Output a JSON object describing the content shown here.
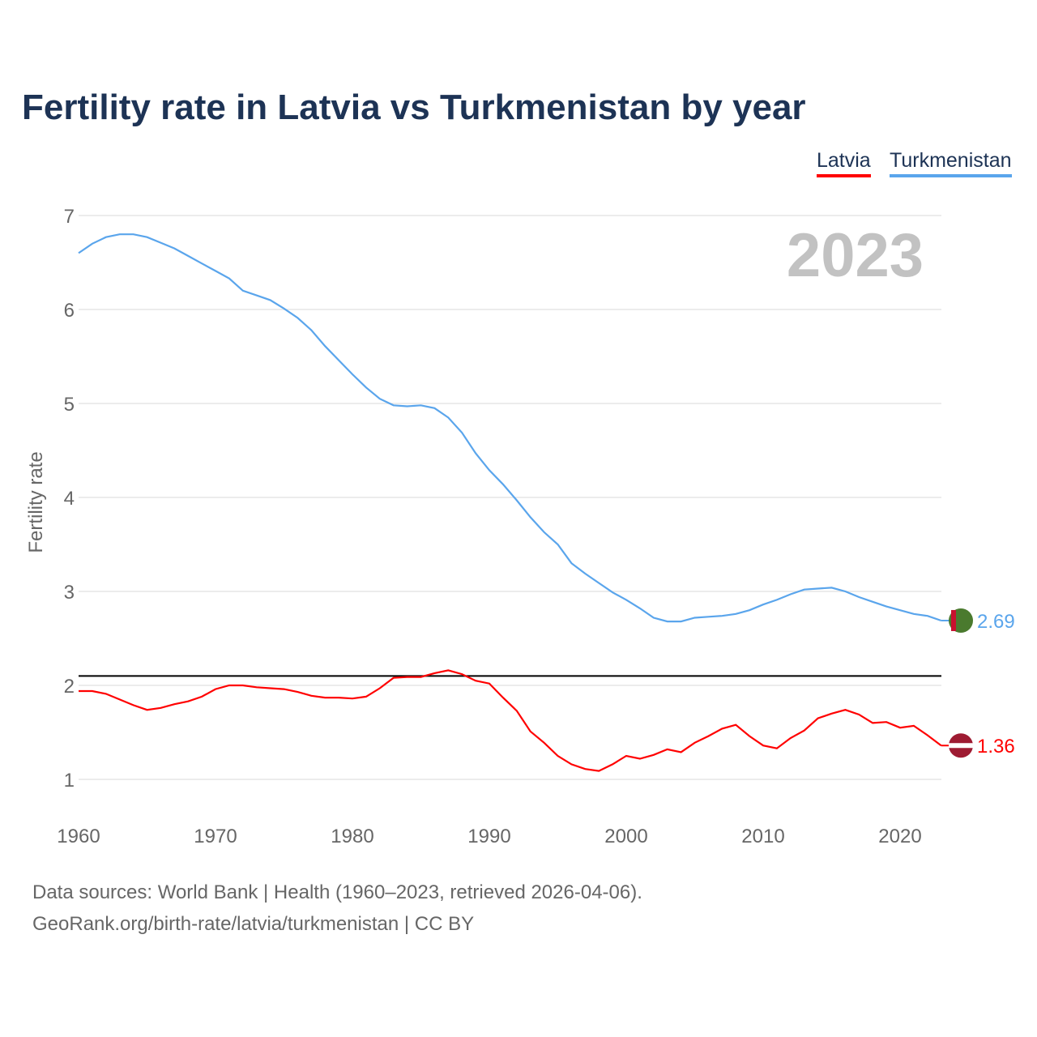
{
  "chart_data": {
    "type": "line",
    "title": "Fertility rate in Latvia vs Turkmenistan by year",
    "xlabel": "",
    "ylabel": "Fertility rate",
    "xlim": [
      1960,
      2023
    ],
    "ylim": [
      1,
      7
    ],
    "x_ticks": [
      "1960",
      "1970",
      "1980",
      "1990",
      "2000",
      "2010",
      "2020"
    ],
    "y_ticks": [
      "1",
      "2",
      "3",
      "4",
      "5",
      "6",
      "7"
    ],
    "grid": true,
    "legend_position": "top-right",
    "year_label": "2023",
    "reference_line": 2.1,
    "x": [
      1960,
      1961,
      1962,
      1963,
      1964,
      1965,
      1966,
      1967,
      1968,
      1969,
      1970,
      1971,
      1972,
      1973,
      1974,
      1975,
      1976,
      1977,
      1978,
      1979,
      1980,
      1981,
      1982,
      1983,
      1984,
      1985,
      1986,
      1987,
      1988,
      1989,
      1990,
      1991,
      1992,
      1993,
      1994,
      1995,
      1996,
      1997,
      1998,
      1999,
      2000,
      2001,
      2002,
      2003,
      2004,
      2005,
      2006,
      2007,
      2008,
      2009,
      2010,
      2011,
      2012,
      2013,
      2014,
      2015,
      2016,
      2017,
      2018,
      2019,
      2020,
      2021,
      2022,
      2023
    ],
    "series": [
      {
        "name": "Latvia",
        "color": "#ff0000",
        "end_label": "1.36",
        "values": [
          1.94,
          1.94,
          1.91,
          1.85,
          1.79,
          1.74,
          1.76,
          1.8,
          1.83,
          1.88,
          1.96,
          2.0,
          2.0,
          1.98,
          1.97,
          1.96,
          1.93,
          1.89,
          1.87,
          1.87,
          1.86,
          1.88,
          1.97,
          2.08,
          2.09,
          2.09,
          2.13,
          2.16,
          2.12,
          2.05,
          2.02,
          1.87,
          1.73,
          1.51,
          1.39,
          1.25,
          1.16,
          1.11,
          1.09,
          1.16,
          1.25,
          1.22,
          1.26,
          1.32,
          1.29,
          1.39,
          1.46,
          1.54,
          1.58,
          1.46,
          1.36,
          1.33,
          1.44,
          1.52,
          1.65,
          1.7,
          1.74,
          1.69,
          1.6,
          1.61,
          1.55,
          1.57,
          1.47,
          1.36
        ]
      },
      {
        "name": "Turkmenistan",
        "color": "#5aa5ec",
        "end_label": "2.69",
        "values": [
          6.6,
          6.7,
          6.77,
          6.8,
          6.8,
          6.77,
          6.71,
          6.65,
          6.57,
          6.49,
          6.41,
          6.33,
          6.2,
          6.15,
          6.1,
          6.01,
          5.91,
          5.78,
          5.61,
          5.46,
          5.31,
          5.17,
          5.05,
          4.98,
          4.97,
          4.98,
          4.95,
          4.85,
          4.69,
          4.47,
          4.29,
          4.14,
          3.97,
          3.79,
          3.63,
          3.5,
          3.3,
          3.19,
          3.09,
          2.99,
          2.91,
          2.82,
          2.72,
          2.68,
          2.68,
          2.72,
          2.73,
          2.74,
          2.76,
          2.8,
          2.86,
          2.91,
          2.97,
          3.02,
          3.03,
          3.04,
          3.0,
          2.94,
          2.89,
          2.84,
          2.8,
          2.76,
          2.74,
          2.69
        ]
      }
    ]
  },
  "footer": {
    "line1": "Data sources: World Bank | Health (1960–2023, retrieved 2026-04-06).",
    "line2": "GeoRank.org/birth-rate/latvia/turkmenistan | CC BY"
  }
}
